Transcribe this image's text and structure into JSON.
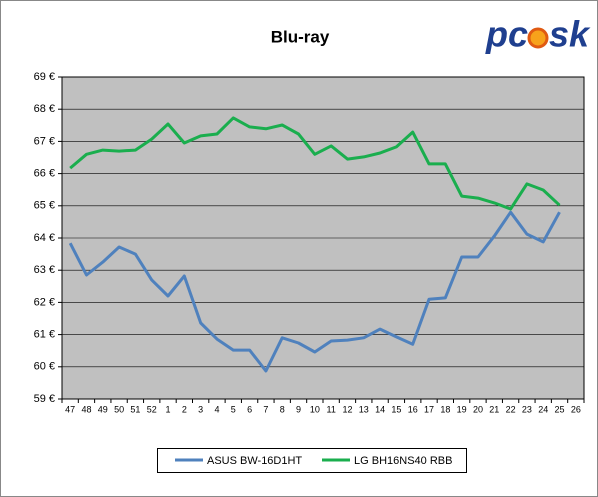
{
  "logo_text": [
    "pc",
    "sk"
  ],
  "chart_data": {
    "type": "line",
    "title": "Blu-ray",
    "categories": [
      "47",
      "48",
      "49",
      "50",
      "51",
      "52",
      "1",
      "2",
      "3",
      "4",
      "5",
      "6",
      "7",
      "8",
      "9",
      "10",
      "11",
      "12",
      "13",
      "14",
      "15",
      "16",
      "17",
      "18",
      "19",
      "20",
      "21",
      "22",
      "23",
      "24",
      "25",
      "26"
    ],
    "series": [
      {
        "name": "ASUS BW-16D1HT",
        "color": "#4f81bd",
        "values": [
          63.84,
          62.85,
          63.25,
          63.72,
          63.5,
          62.7,
          62.2,
          62.82,
          61.36,
          60.86,
          60.52,
          60.52,
          59.87,
          60.9,
          60.74,
          60.46,
          60.8,
          60.83,
          60.9,
          61.17,
          60.93,
          60.7,
          62.1,
          62.14,
          63.41,
          63.41,
          64.06,
          64.8,
          64.12,
          63.88,
          64.8,
          null
        ]
      },
      {
        "name": "LG BH16NS40 RBB",
        "color": "#1aae4e",
        "values": [
          66.17,
          66.6,
          66.73,
          66.7,
          66.73,
          67.07,
          67.54,
          66.95,
          67.17,
          67.23,
          67.73,
          67.45,
          67.39,
          67.51,
          67.23,
          66.6,
          66.86,
          66.45,
          66.52,
          66.64,
          66.83,
          67.29,
          66.3,
          66.3,
          65.3,
          65.24,
          65.09,
          64.9,
          65.68,
          65.49,
          65.02,
          null
        ]
      }
    ],
    "ylim": [
      59,
      69
    ],
    "yticks": [
      {
        "value": 59,
        "label": "59 €"
      },
      {
        "value": 60,
        "label": "60 €"
      },
      {
        "value": 61,
        "label": "61 €"
      },
      {
        "value": 62,
        "label": "62 €"
      },
      {
        "value": 63,
        "label": "63 €"
      },
      {
        "value": 64,
        "label": "64 €"
      },
      {
        "value": 65,
        "label": "65 €"
      },
      {
        "value": 66,
        "label": "66 €"
      },
      {
        "value": 67,
        "label": "67 €"
      },
      {
        "value": 68,
        "label": "68 €"
      },
      {
        "value": 69,
        "label": "69 €"
      }
    ],
    "grid": true,
    "legend": "bottom"
  }
}
